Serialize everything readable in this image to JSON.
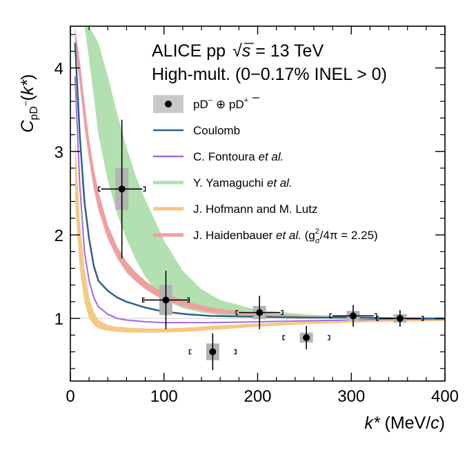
{
  "chart_data": {
    "type": "scatter",
    "title_line1": "ALICE pp",
    "title_sqrt": "√",
    "title_s": "s",
    "title_energy": " = 13 TeV",
    "title_line2": "High-mult. (0−0.17% INEL > 0)",
    "xlabel_var": "k*",
    "xlabel_unit_open": " (MeV/",
    "xlabel_unit_c": "c",
    "xlabel_unit_close": ")",
    "ylabel_c": "C",
    "ylabel_sub": "pD",
    "ylabel_sup": "−",
    "ylabel_arg_open": "(",
    "ylabel_arg": "k*",
    "ylabel_arg_close": ")",
    "xlim": [
      0,
      400
    ],
    "ylim": [
      0.25,
      4.5
    ],
    "x_ticks": [
      0,
      100,
      200,
      300,
      400
    ],
    "x_tick_labels": [
      "0",
      "100",
      "200",
      "300",
      "400"
    ],
    "y_ticks": [
      1,
      2,
      3,
      4
    ],
    "y_tick_labels": [
      "1",
      "2",
      "3",
      "4"
    ],
    "colors": {
      "data": "#000000",
      "syst": "#b4b4b4",
      "coulomb": "#2d5f8a",
      "fontoura": "#a366e8",
      "yamaguchi": "#b2e0b0",
      "hofmann": "#f4c985",
      "haidenbauer": "#eea0a0"
    },
    "data_points": {
      "name_parts": [
        "pD",
        "−",
        " ⊕ ",
        "p",
        "D",
        "+"
      ],
      "x": [
        55,
        102,
        152,
        202,
        252,
        302,
        352
      ],
      "y": [
        2.55,
        1.22,
        0.6,
        1.07,
        0.77,
        1.03,
        1.0
      ],
      "xerr": [
        22,
        25,
        0,
        22,
        0,
        22,
        22
      ],
      "yerr": [
        0.83,
        0.35,
        0.22,
        0.2,
        0.14,
        0.13,
        0.1
      ],
      "syst_halfwidth": [
        3.5,
        3.5,
        3.5,
        3.5,
        3.5,
        3.5,
        3.5
      ],
      "syst_err": [
        0.25,
        0.18,
        0.1,
        0.08,
        0.06,
        0.06,
        0.05
      ],
      "bin_halfwidth": [
        25,
        25,
        25,
        25,
        25,
        25,
        25
      ]
    },
    "series": [
      {
        "name": "Coulomb",
        "style": "line",
        "x": [
          5,
          10,
          15,
          20,
          25,
          30,
          40,
          50,
          60,
          80,
          100,
          125,
          150,
          200,
          250,
          300,
          350,
          400
        ],
        "y": [
          4.3,
          3.2,
          2.4,
          1.95,
          1.63,
          1.45,
          1.33,
          1.25,
          1.2,
          1.13,
          1.08,
          1.05,
          1.03,
          1.02,
          1.01,
          1.01,
          1.0,
          1.0
        ]
      },
      {
        "name_prefix": "C. Fontoura ",
        "name_em": "et al.",
        "name_suffix": "",
        "style": "line",
        "x": [
          5,
          10,
          15,
          20,
          25,
          30,
          40,
          50,
          60,
          80,
          100,
          150,
          200,
          250,
          300,
          350,
          400
        ],
        "y": [
          3.9,
          2.6,
          1.8,
          1.45,
          1.25,
          1.14,
          1.05,
          1.0,
          0.98,
          0.96,
          0.95,
          0.95,
          0.96,
          0.97,
          0.98,
          0.99,
          0.99
        ]
      },
      {
        "name_prefix": "Y. Yamaguchi ",
        "name_em": "et al.",
        "name_suffix": "",
        "style": "band",
        "x": [
          15,
          20,
          30,
          40,
          50,
          60,
          70,
          80,
          90,
          100,
          120,
          140,
          160,
          200,
          250,
          300,
          350,
          400
        ],
        "y_low": [
          4.5,
          4.1,
          3.2,
          2.65,
          2.25,
          1.95,
          1.7,
          1.5,
          1.35,
          1.22,
          1.12,
          1.07,
          1.04,
          1.02,
          1.0,
          1.0,
          1.0,
          1.0
        ],
        "y_high": [
          4.5,
          4.5,
          4.3,
          3.9,
          3.45,
          3.05,
          2.7,
          2.42,
          2.18,
          1.93,
          1.57,
          1.35,
          1.22,
          1.1,
          1.05,
          1.02,
          1.01,
          1.0
        ]
      },
      {
        "name": "J. Hofmann and M. Lutz",
        "style": "band",
        "x": [
          5,
          10,
          15,
          20,
          25,
          30,
          40,
          50,
          60,
          80,
          100,
          125,
          150,
          200,
          250,
          300,
          350,
          400
        ],
        "y_low": [
          2.4,
          1.6,
          1.2,
          1.0,
          0.92,
          0.88,
          0.85,
          0.84,
          0.83,
          0.83,
          0.83,
          0.84,
          0.86,
          0.9,
          0.93,
          0.95,
          0.96,
          0.97
        ],
        "y_high": [
          3.2,
          2.2,
          1.6,
          1.25,
          1.08,
          0.98,
          0.92,
          0.9,
          0.89,
          0.88,
          0.88,
          0.89,
          0.91,
          0.94,
          0.96,
          0.97,
          0.98,
          0.99
        ]
      },
      {
        "name_prefix": "J. Haidenbauer ",
        "name_em": "et al.",
        "name_suffix": " (g",
        "name_sup": "2",
        "name_sub": "σ",
        "name_tail": "/4π = 2.25)",
        "style": "band",
        "x": [
          5,
          10,
          15,
          20,
          25,
          30,
          40,
          50,
          60,
          70,
          80,
          90,
          100,
          125,
          150,
          200,
          250,
          300,
          350,
          400
        ],
        "y_low": [
          4.3,
          3.8,
          3.3,
          2.9,
          2.55,
          2.3,
          1.95,
          1.72,
          1.55,
          1.44,
          1.35,
          1.28,
          1.22,
          1.13,
          1.07,
          1.03,
          1.01,
          1.0,
          0.99,
          1.0
        ],
        "y_high": [
          4.5,
          4.1,
          3.6,
          3.15,
          2.8,
          2.52,
          2.12,
          1.86,
          1.68,
          1.55,
          1.45,
          1.37,
          1.31,
          1.2,
          1.13,
          1.06,
          1.03,
          1.01,
          1.0,
          1.0
        ]
      }
    ],
    "reference_line": 1.0,
    "legend_position": "upper-right"
  }
}
